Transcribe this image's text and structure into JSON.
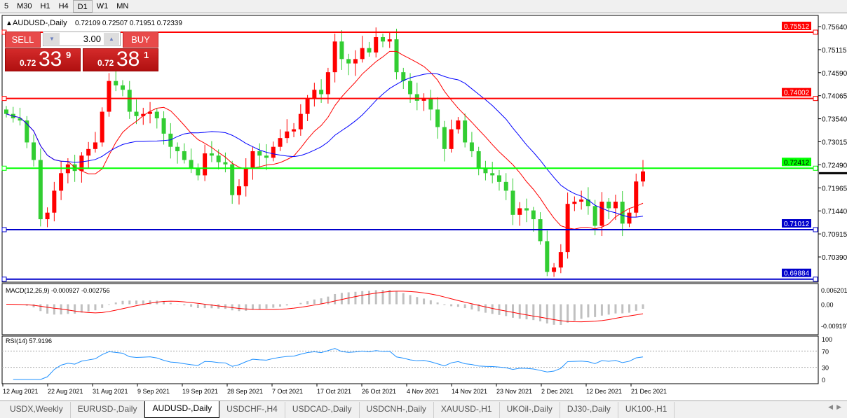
{
  "timeframes": [
    {
      "label": "5"
    },
    {
      "label": "M30"
    },
    {
      "label": "H1"
    },
    {
      "label": "H4"
    },
    {
      "label": "D1",
      "active": true
    },
    {
      "label": "W1"
    },
    {
      "label": "MN"
    }
  ],
  "chart": {
    "title": "AUDUSD-,Daily",
    "ohlc": "0.72109 0.72507 0.71951 0.72339",
    "bull_color": "#ff0000",
    "bear_color": "#32cd32",
    "ma_fast_color": "#ff0000",
    "ma_slow_color": "#0000ff"
  },
  "trade": {
    "sell_label": "SELL",
    "buy_label": "BUY",
    "lot": "3.00",
    "sell": {
      "small": "0.72",
      "big": "33",
      "pip": "9"
    },
    "buy": {
      "small": "0.72",
      "big": "38",
      "pip": "1"
    }
  },
  "price_axis": {
    "ticks": [
      "0.75640",
      "0.75115",
      "0.74590",
      "0.74065",
      "0.73540",
      "0.73015",
      "0.72490",
      "0.71965",
      "0.71440",
      "0.70915",
      "0.70390"
    ],
    "current_price": "0.72339"
  },
  "levels": [
    {
      "price": "0.75512",
      "color": "#ff0000"
    },
    {
      "price": "0.74002",
      "color": "#ff0000"
    },
    {
      "price": "0.72412",
      "color": "#00ff00"
    },
    {
      "price": "0.71012",
      "color": "#0000cc"
    },
    {
      "price": "0.69884",
      "color": "#0000cc"
    }
  ],
  "macd": {
    "label": "MACD(12,26,9) -0.000927 -0.002756",
    "ticks": [
      "0.006201",
      "0.00",
      "-0.009197"
    ]
  },
  "rsi": {
    "label": "RSI(14) 57.9196",
    "ticks": [
      "100",
      "70",
      "30",
      "0"
    ]
  },
  "date_axis": [
    "12 Aug 2021",
    "22 Aug 2021",
    "31 Aug 2021",
    "9 Sep 2021",
    "19 Sep 2021",
    "28 Sep 2021",
    "7 Oct 2021",
    "17 Oct 2021",
    "26 Oct 2021",
    "4 Nov 2021",
    "14 Nov 2021",
    "23 Nov 2021",
    "2 Dec 2021",
    "12 Dec 2021",
    "21 Dec 2021"
  ],
  "chart_data": {
    "type": "candlestick",
    "ylim": [
      0.6982,
      0.759
    ],
    "closes": [
      0.7365,
      0.7355,
      0.735,
      0.73,
      0.726,
      0.7125,
      0.714,
      0.719,
      0.723,
      0.725,
      0.7235,
      0.727,
      0.7285,
      0.73,
      0.737,
      0.744,
      0.743,
      0.742,
      0.737,
      0.736,
      0.7365,
      0.737,
      0.7355,
      0.732,
      0.729,
      0.728,
      0.726,
      0.724,
      0.7225,
      0.7275,
      0.727,
      0.7255,
      0.725,
      0.718,
      0.72,
      0.724,
      0.728,
      0.727,
      0.7265,
      0.729,
      0.731,
      0.7325,
      0.733,
      0.7365,
      0.74,
      0.742,
      0.741,
      0.746,
      0.753,
      0.749,
      0.748,
      0.749,
      0.7515,
      0.7505,
      0.754,
      0.753,
      0.7535,
      0.746,
      0.744,
      0.741,
      0.7395,
      0.74,
      0.7375,
      0.7335,
      0.7285,
      0.733,
      0.735,
      0.73,
      0.728,
      0.724,
      0.723,
      0.7225,
      0.721,
      0.719,
      0.7135,
      0.715,
      0.7145,
      0.7125,
      0.7075,
      0.7005,
      0.7015,
      0.705,
      0.716,
      0.7165,
      0.717,
      0.7155,
      0.711,
      0.7165,
      0.715,
      0.7165,
      0.7115,
      0.714,
      0.7211,
      0.72339
    ]
  },
  "tabs": [
    {
      "label": "USDX,Weekly"
    },
    {
      "label": "EURUSD-,Daily"
    },
    {
      "label": "AUDUSD-,Daily",
      "active": true
    },
    {
      "label": "USDCHF-,H4"
    },
    {
      "label": "USDCAD-,Daily"
    },
    {
      "label": "USDCNH-,Daily"
    },
    {
      "label": "XAUUSD-,H1"
    },
    {
      "label": "UKOil-,Daily"
    },
    {
      "label": "DJ30-,Daily"
    },
    {
      "label": "UK100-,H1"
    }
  ]
}
